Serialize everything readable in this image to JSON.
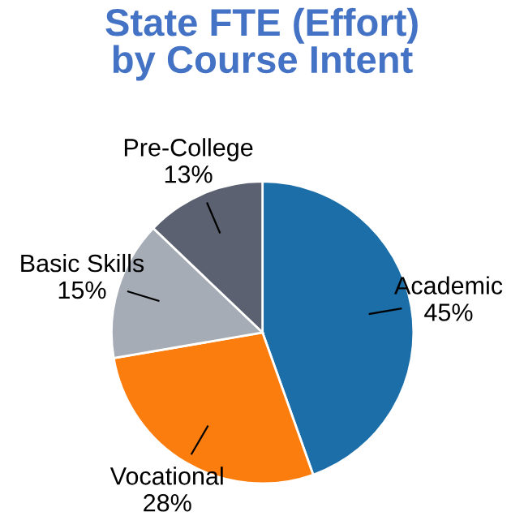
{
  "chart_data": {
    "type": "pie",
    "title": "State FTE (Effort)\nby Course Intent",
    "categories": [
      "Academic",
      "Vocational",
      "Basic Skills",
      "Pre-College"
    ],
    "values": [
      45,
      28,
      15,
      13
    ],
    "value_labels": [
      "45%",
      "28%",
      "15%",
      "13%"
    ],
    "colors": [
      "#1b6ea8",
      "#fb7d0e",
      "#a6acb5",
      "#5b6170"
    ],
    "legend": false
  }
}
